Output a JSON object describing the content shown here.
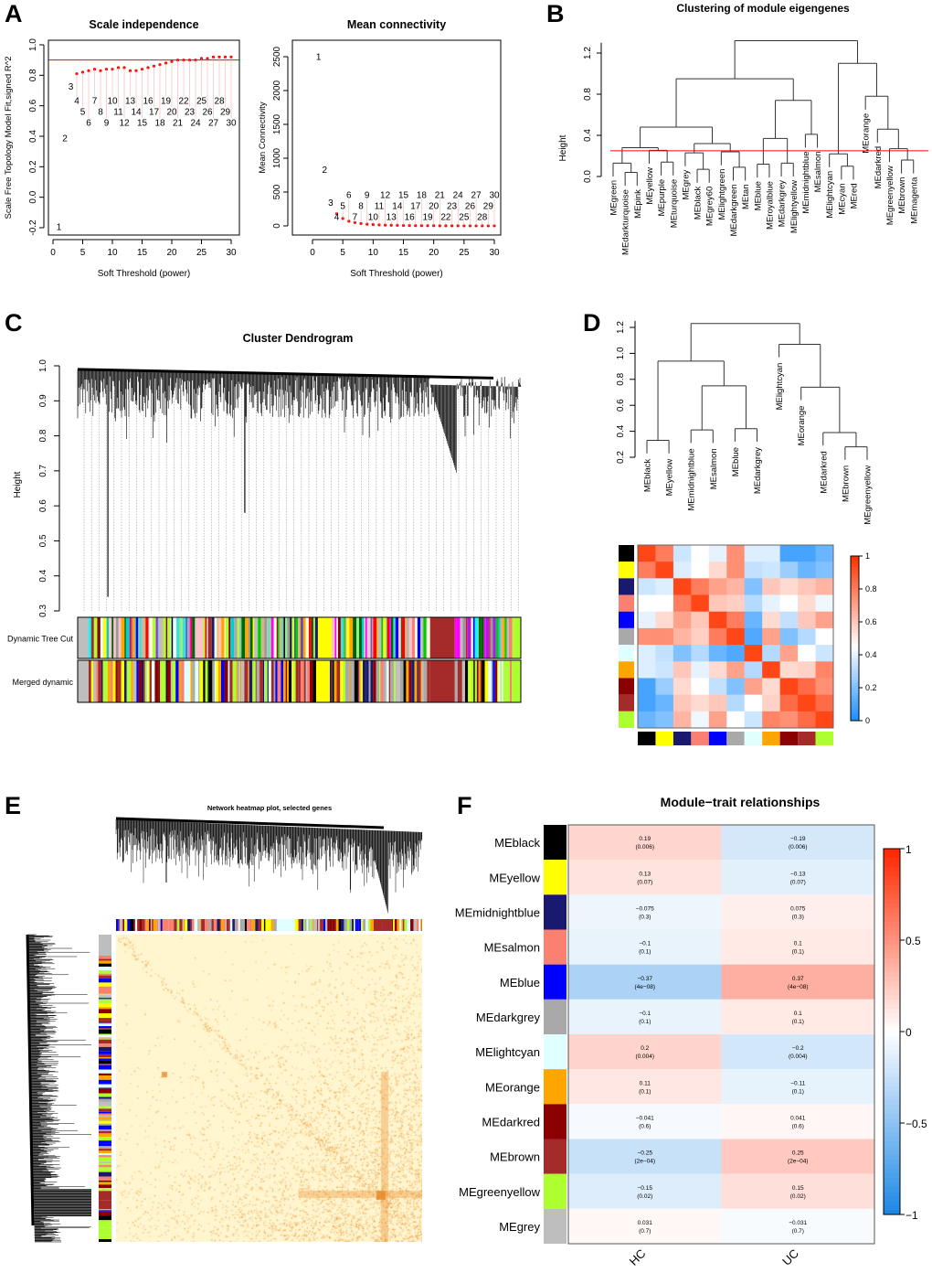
{
  "panel_labels": [
    "A",
    "B",
    "C",
    "D",
    "E",
    "F"
  ],
  "module_colors": {
    "black": "#000000",
    "yellow": "#FFFF00",
    "midnightblue": "#191970",
    "salmon": "#FA8072",
    "blue": "#0000FF",
    "darkgrey": "#A9A9A9",
    "lightcyan": "#E0FFFF",
    "orange": "#FFA500",
    "darkred": "#8B0000",
    "brown": "#A52A2A",
    "greenyellow": "#ADFF2F",
    "grey": "#BEBEBE",
    "turquoise": "#40E0D0",
    "green": "#00CD00",
    "pink": "#FFC0CB",
    "purple": "#A020F0",
    "tan": "#D2B48C",
    "cyan": "#00FFFF",
    "magenta": "#FF00FF",
    "red": "#FF0000",
    "royalblue": "#4169E1",
    "lightgreen": "#90EE90",
    "grey60": "#999999",
    "darkgreen": "#006400",
    "lightyellow": "#FFFFE0",
    "darkturquoise": "#00CED1"
  },
  "chart_data": [
    {
      "id": "A1",
      "type": "scatter",
      "title": "Scale independence",
      "xlabel": "Soft Threshold (power)",
      "ylabel": "Scale Free Topology Model Fit,signed R^2",
      "xlim": [
        0,
        30
      ],
      "ylim": [
        -0.2,
        1.0
      ],
      "xticks": [
        "0",
        "5",
        "10",
        "15",
        "20",
        "25",
        "30"
      ],
      "yticks": [
        "-0.2",
        "0.0",
        "0.2",
        "0.4",
        "0.6",
        "0.8",
        "1.0"
      ],
      "hline": 0.9,
      "x": [
        1,
        2,
        3,
        4,
        5,
        6,
        7,
        8,
        9,
        10,
        11,
        12,
        13,
        14,
        15,
        16,
        17,
        18,
        19,
        20,
        21,
        22,
        23,
        24,
        25,
        26,
        27,
        28,
        29,
        30
      ],
      "y": [
        -0.19,
        0.39,
        0.73,
        0.81,
        0.82,
        0.83,
        0.84,
        0.83,
        0.84,
        0.84,
        0.85,
        0.85,
        0.83,
        0.83,
        0.84,
        0.85,
        0.86,
        0.87,
        0.88,
        0.89,
        0.9,
        0.9,
        0.9,
        0.9,
        0.91,
        0.91,
        0.92,
        0.92,
        0.92,
        0.92
      ]
    },
    {
      "id": "A2",
      "type": "scatter",
      "title": "Mean connectivity",
      "xlabel": "Soft Threshold (power)",
      "ylabel": "Mean Connectivity",
      "xlim": [
        0,
        30
      ],
      "ylim": [
        0,
        2500
      ],
      "xticks": [
        "0",
        "5",
        "10",
        "15",
        "20",
        "25",
        "30"
      ],
      "yticks": [
        "0",
        "500",
        "1000",
        "1500",
        "2000",
        "2500"
      ],
      "x": [
        1,
        2,
        3,
        4,
        5,
        6,
        7,
        8,
        9,
        10,
        11,
        12,
        13,
        14,
        15,
        16,
        17,
        18,
        19,
        20,
        21,
        22,
        23,
        24,
        25,
        26,
        27,
        28,
        29,
        30
      ],
      "y": [
        2510,
        840,
        350,
        180,
        110,
        70,
        50,
        35,
        25,
        20,
        15,
        12,
        10,
        8,
        6,
        5,
        4,
        4,
        3,
        3,
        2,
        2,
        2,
        2,
        1,
        1,
        1,
        1,
        1,
        1
      ]
    },
    {
      "id": "B",
      "type": "dendrogram",
      "title": "Clustering of module eigengenes",
      "ylabel": "Height",
      "ylim": [
        0,
        1.35
      ],
      "yticks": [
        "0.0",
        "0.4",
        "0.8",
        "1.2"
      ],
      "cut_height": 0.25,
      "tree": [
        1.32,
        [
          0.95,
          [
            0.48,
            [
              0.28,
              [
                0.13,
                "MEgreen",
                [
                  0.04,
                  "MEdarkturquoise",
                  "MEpink"
                ]
              ],
              [
                0.255,
                "MEyellow",
                [
                  0.14,
                  "MEpurple",
                  "MEturquoise"
                ]
              ]
            ],
            [
              0.32,
              [
                0.23,
                "MEgrey",
                [
                  0.07,
                  "MEblack",
                  "MEgrey60"
                ]
              ],
              [
                0.24,
                "MElightgreen",
                [
                  0.09,
                  "MEdarkgreen",
                  "MEtan"
                ]
              ]
            ]
          ],
          [
            0.74,
            [
              0.37,
              [
                0.12,
                "MEblue",
                "MEroyalblue"
              ],
              [
                0.13,
                "MEdarkgrey",
                "MElightyellow"
              ]
            ],
            [
              0.41,
              "MEmidnightblue",
              "MEsalmon"
            ]
          ]
        ],
        [
          1.1,
          [
            0.22,
            "MElightcyan",
            [
              0.1,
              "MEcyan",
              "MEred"
            ]
          ],
          [
            0.78,
            "MEorange",
            [
              0.46,
              "MEdarkred",
              [
                0.27,
                "MEgreenyellow",
                [
                  0.16,
                  "MEbrown",
                  "MEmagenta"
                ]
              ]
            ]
          ]
        ]
      ]
    },
    {
      "id": "C",
      "type": "dendrogram",
      "title": "Cluster Dendrogram",
      "ylabel": "Height",
      "ylim": [
        0.3,
        1.0
      ],
      "yticks": [
        "0.3",
        "0.4",
        "0.5",
        "0.6",
        "0.7",
        "0.8",
        "0.9",
        "1.0"
      ],
      "color_rows": [
        "Dynamic Tree Cut",
        "Merged dynamic"
      ]
    },
    {
      "id": "D",
      "type": "heatmap",
      "ylim": [
        0.2,
        1.25
      ],
      "yticks": [
        "0.2",
        "0.4",
        "0.6",
        "0.8",
        "1.0",
        "1.2"
      ],
      "tree": [
        1.23,
        [
          0.94,
          [
            0.33,
            "MEblack",
            "MEyellow"
          ],
          [
            0.75,
            [
              0.41,
              "MEmidnightblue",
              "MEsalmon"
            ],
            [
              0.42,
              "MEblue",
              "MEdarkgrey"
            ]
          ]
        ],
        [
          1.07,
          "MElightcyan",
          [
            0.74,
            "MEorange",
            [
              0.39,
              "MEdarkred",
              [
                0.28,
                "MEbrown",
                "MEgreenyellow"
              ]
            ]
          ]
        ]
      ],
      "modules": [
        "black",
        "yellow",
        "midnightblue",
        "salmon",
        "blue",
        "darkgrey",
        "lightcyan",
        "orange",
        "darkred",
        "brown",
        "greenyellow"
      ],
      "colorbar_ticks": [
        "0",
        "0.2",
        "0.4",
        "0.6",
        "0.8",
        "1"
      ],
      "matrix": [
        [
          0.95,
          0.8,
          0.35,
          0.45,
          0.4,
          0.75,
          0.38,
          0.38,
          0.08,
          0.08,
          0.15
        ],
        [
          0.8,
          0.95,
          0.38,
          0.45,
          0.55,
          0.75,
          0.33,
          0.35,
          0.25,
          0.15,
          0.2
        ],
        [
          0.35,
          0.38,
          0.95,
          0.8,
          0.7,
          0.65,
          0.2,
          0.6,
          0.55,
          0.6,
          0.65
        ],
        [
          0.45,
          0.45,
          0.8,
          0.95,
          0.6,
          0.58,
          0.3,
          0.4,
          0.45,
          0.55,
          0.42
        ],
        [
          0.4,
          0.55,
          0.7,
          0.6,
          0.95,
          0.8,
          0.15,
          0.55,
          0.33,
          0.6,
          0.7
        ],
        [
          0.75,
          0.75,
          0.65,
          0.58,
          0.8,
          0.95,
          0.1,
          0.7,
          0.2,
          0.3,
          0.45
        ],
        [
          0.38,
          0.33,
          0.2,
          0.3,
          0.15,
          0.1,
          0.95,
          0.3,
          0.7,
          0.45,
          0.35
        ],
        [
          0.38,
          0.35,
          0.6,
          0.4,
          0.55,
          0.7,
          0.3,
          0.95,
          0.55,
          0.57,
          0.78
        ],
        [
          0.08,
          0.25,
          0.55,
          0.45,
          0.33,
          0.2,
          0.7,
          0.55,
          0.95,
          0.85,
          0.75
        ],
        [
          0.08,
          0.15,
          0.6,
          0.55,
          0.6,
          0.3,
          0.45,
          0.57,
          0.85,
          0.95,
          0.85
        ],
        [
          0.15,
          0.2,
          0.65,
          0.42,
          0.7,
          0.45,
          0.35,
          0.78,
          0.75,
          0.85,
          0.95
        ]
      ]
    },
    {
      "id": "E",
      "type": "heatmap",
      "title": "Network heatmap plot, selected genes"
    },
    {
      "id": "F",
      "type": "heatmap",
      "title": "Module−trait relationships",
      "columns": [
        "HC",
        "UC"
      ],
      "colorbar_ticks": [
        "1",
        "0.5",
        "0",
        "−0.5",
        "−1"
      ],
      "rows": [
        {
          "module": "MEblack",
          "color": "black",
          "cor": [
            0.19,
            -0.19
          ],
          "labels": [
            "0.19",
            "−0.19"
          ],
          "p": [
            "(0.006)",
            "(0.006)"
          ]
        },
        {
          "module": "MEyellow",
          "color": "yellow",
          "cor": [
            0.13,
            -0.13
          ],
          "labels": [
            "0.13",
            "−0.13"
          ],
          "p": [
            "(0.07)",
            "(0.07)"
          ]
        },
        {
          "module": "MEmidnightblue",
          "color": "midnightblue",
          "cor": [
            -0.075,
            0.075
          ],
          "labels": [
            "−0.075",
            "0.075"
          ],
          "p": [
            "(0.3)",
            "(0.3)"
          ]
        },
        {
          "module": "MEsalmon",
          "color": "salmon",
          "cor": [
            -0.1,
            0.1
          ],
          "labels": [
            "−0.1",
            "0.1"
          ],
          "p": [
            "(0.1)",
            "(0.1)"
          ]
        },
        {
          "module": "MEblue",
          "color": "blue",
          "cor": [
            -0.37,
            0.37
          ],
          "labels": [
            "−0.37",
            "0.37"
          ],
          "p": [
            "(4e−08)",
            "(4e−08)"
          ]
        },
        {
          "module": "MEdarkgrey",
          "color": "darkgrey",
          "cor": [
            -0.1,
            0.1
          ],
          "labels": [
            "−0.1",
            "0.1"
          ],
          "p": [
            "(0.1)",
            "(0.1)"
          ]
        },
        {
          "module": "MElightcyan",
          "color": "lightcyan",
          "cor": [
            0.2,
            -0.2
          ],
          "labels": [
            "0.2",
            "−0.2"
          ],
          "p": [
            "(0.004)",
            "(0.004)"
          ]
        },
        {
          "module": "MEorange",
          "color": "orange",
          "cor": [
            0.11,
            -0.11
          ],
          "labels": [
            "0.11",
            "−0.11"
          ],
          "p": [
            "(0.1)",
            "(0.1)"
          ]
        },
        {
          "module": "MEdarkred",
          "color": "darkred",
          "cor": [
            -0.041,
            0.041
          ],
          "labels": [
            "−0.041",
            "0.041"
          ],
          "p": [
            "(0.6)",
            "(0.6)"
          ]
        },
        {
          "module": "MEbrown",
          "color": "brown",
          "cor": [
            -0.25,
            0.25
          ],
          "labels": [
            "−0.25",
            "0.25"
          ],
          "p": [
            "(2e−04)",
            "(2e−04)"
          ]
        },
        {
          "module": "MEgreenyellow",
          "color": "greenyellow",
          "cor": [
            -0.15,
            0.15
          ],
          "labels": [
            "−0.15",
            "0.15"
          ],
          "p": [
            "(0.02)",
            "(0.02)"
          ]
        },
        {
          "module": "MEgrey",
          "color": "grey",
          "cor": [
            0.031,
            -0.031
          ],
          "labels": [
            "0.031",
            "−0.031"
          ],
          "p": [
            "(0.7)",
            "(0.7)"
          ]
        }
      ]
    }
  ]
}
